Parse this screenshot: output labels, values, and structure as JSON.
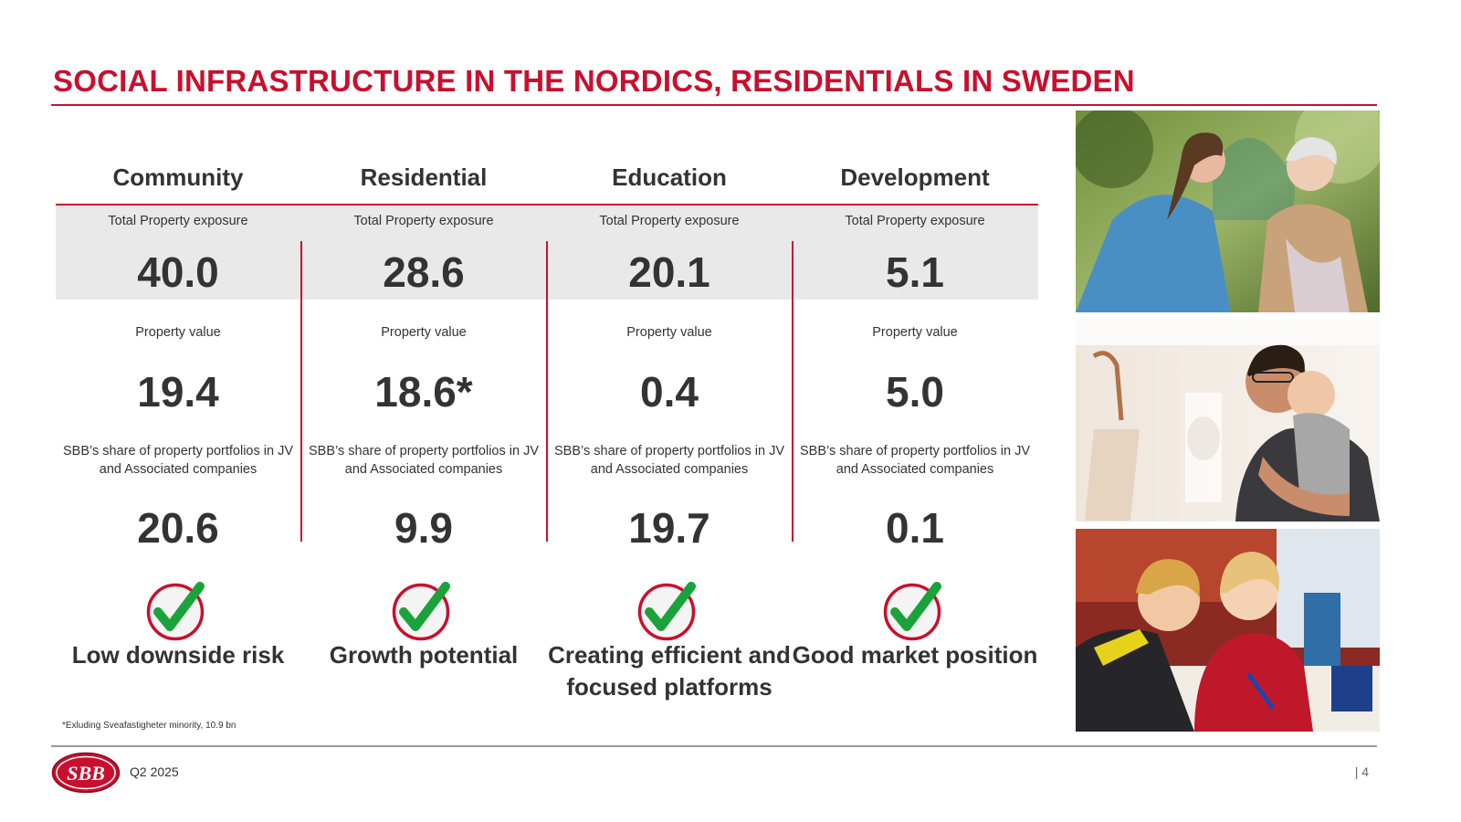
{
  "title": "SOCIAL INFRASTRUCTURE IN THE NORDICS, RESIDENTIALS IN SWEDEN",
  "colors": {
    "accent": "#c8102e",
    "check_green": "#1aa33a",
    "band": "#e9e9e9"
  },
  "columns": [
    {
      "name": "Community",
      "exposure_label": "Total Property exposure",
      "exposure": "40.0",
      "value_label": "Property value",
      "value": "19.4",
      "share_label": "SBB’s share of property portfolios in JV and Associated companies",
      "share": "20.6",
      "verdict": "Low downside risk"
    },
    {
      "name": "Residential",
      "exposure_label": "Total Property exposure",
      "exposure": "28.6",
      "value_label": "Property value",
      "value": "18.6*",
      "share_label": "SBB’s share of property portfolios in JV and Associated companies",
      "share": "9.9",
      "verdict": "Growth potential"
    },
    {
      "name": "Education",
      "exposure_label": "Total Property exposure",
      "exposure": "20.1",
      "value_label": "Property value",
      "value": "0.4",
      "share_label": "SBB’s share of property portfolios in JV and Associated companies",
      "share": "19.7",
      "verdict": "Creating efficient and focused platforms"
    },
    {
      "name": "Development",
      "exposure_label": "Total Property exposure",
      "exposure": "5.1",
      "value_label": "Property value",
      "value": "5.0",
      "share_label": "SBB’s share of property portfolios in JV and Associated companies",
      "share": "0.1",
      "verdict": "Good market position"
    }
  ],
  "footnote": "*Exluding Sveafastigheter minority, 10.9 bn",
  "icons": {
    "check": "checkmark-circle-icon"
  },
  "footer": {
    "logo_text": "SBB",
    "period": "Q2 2025",
    "page": "| 4"
  }
}
